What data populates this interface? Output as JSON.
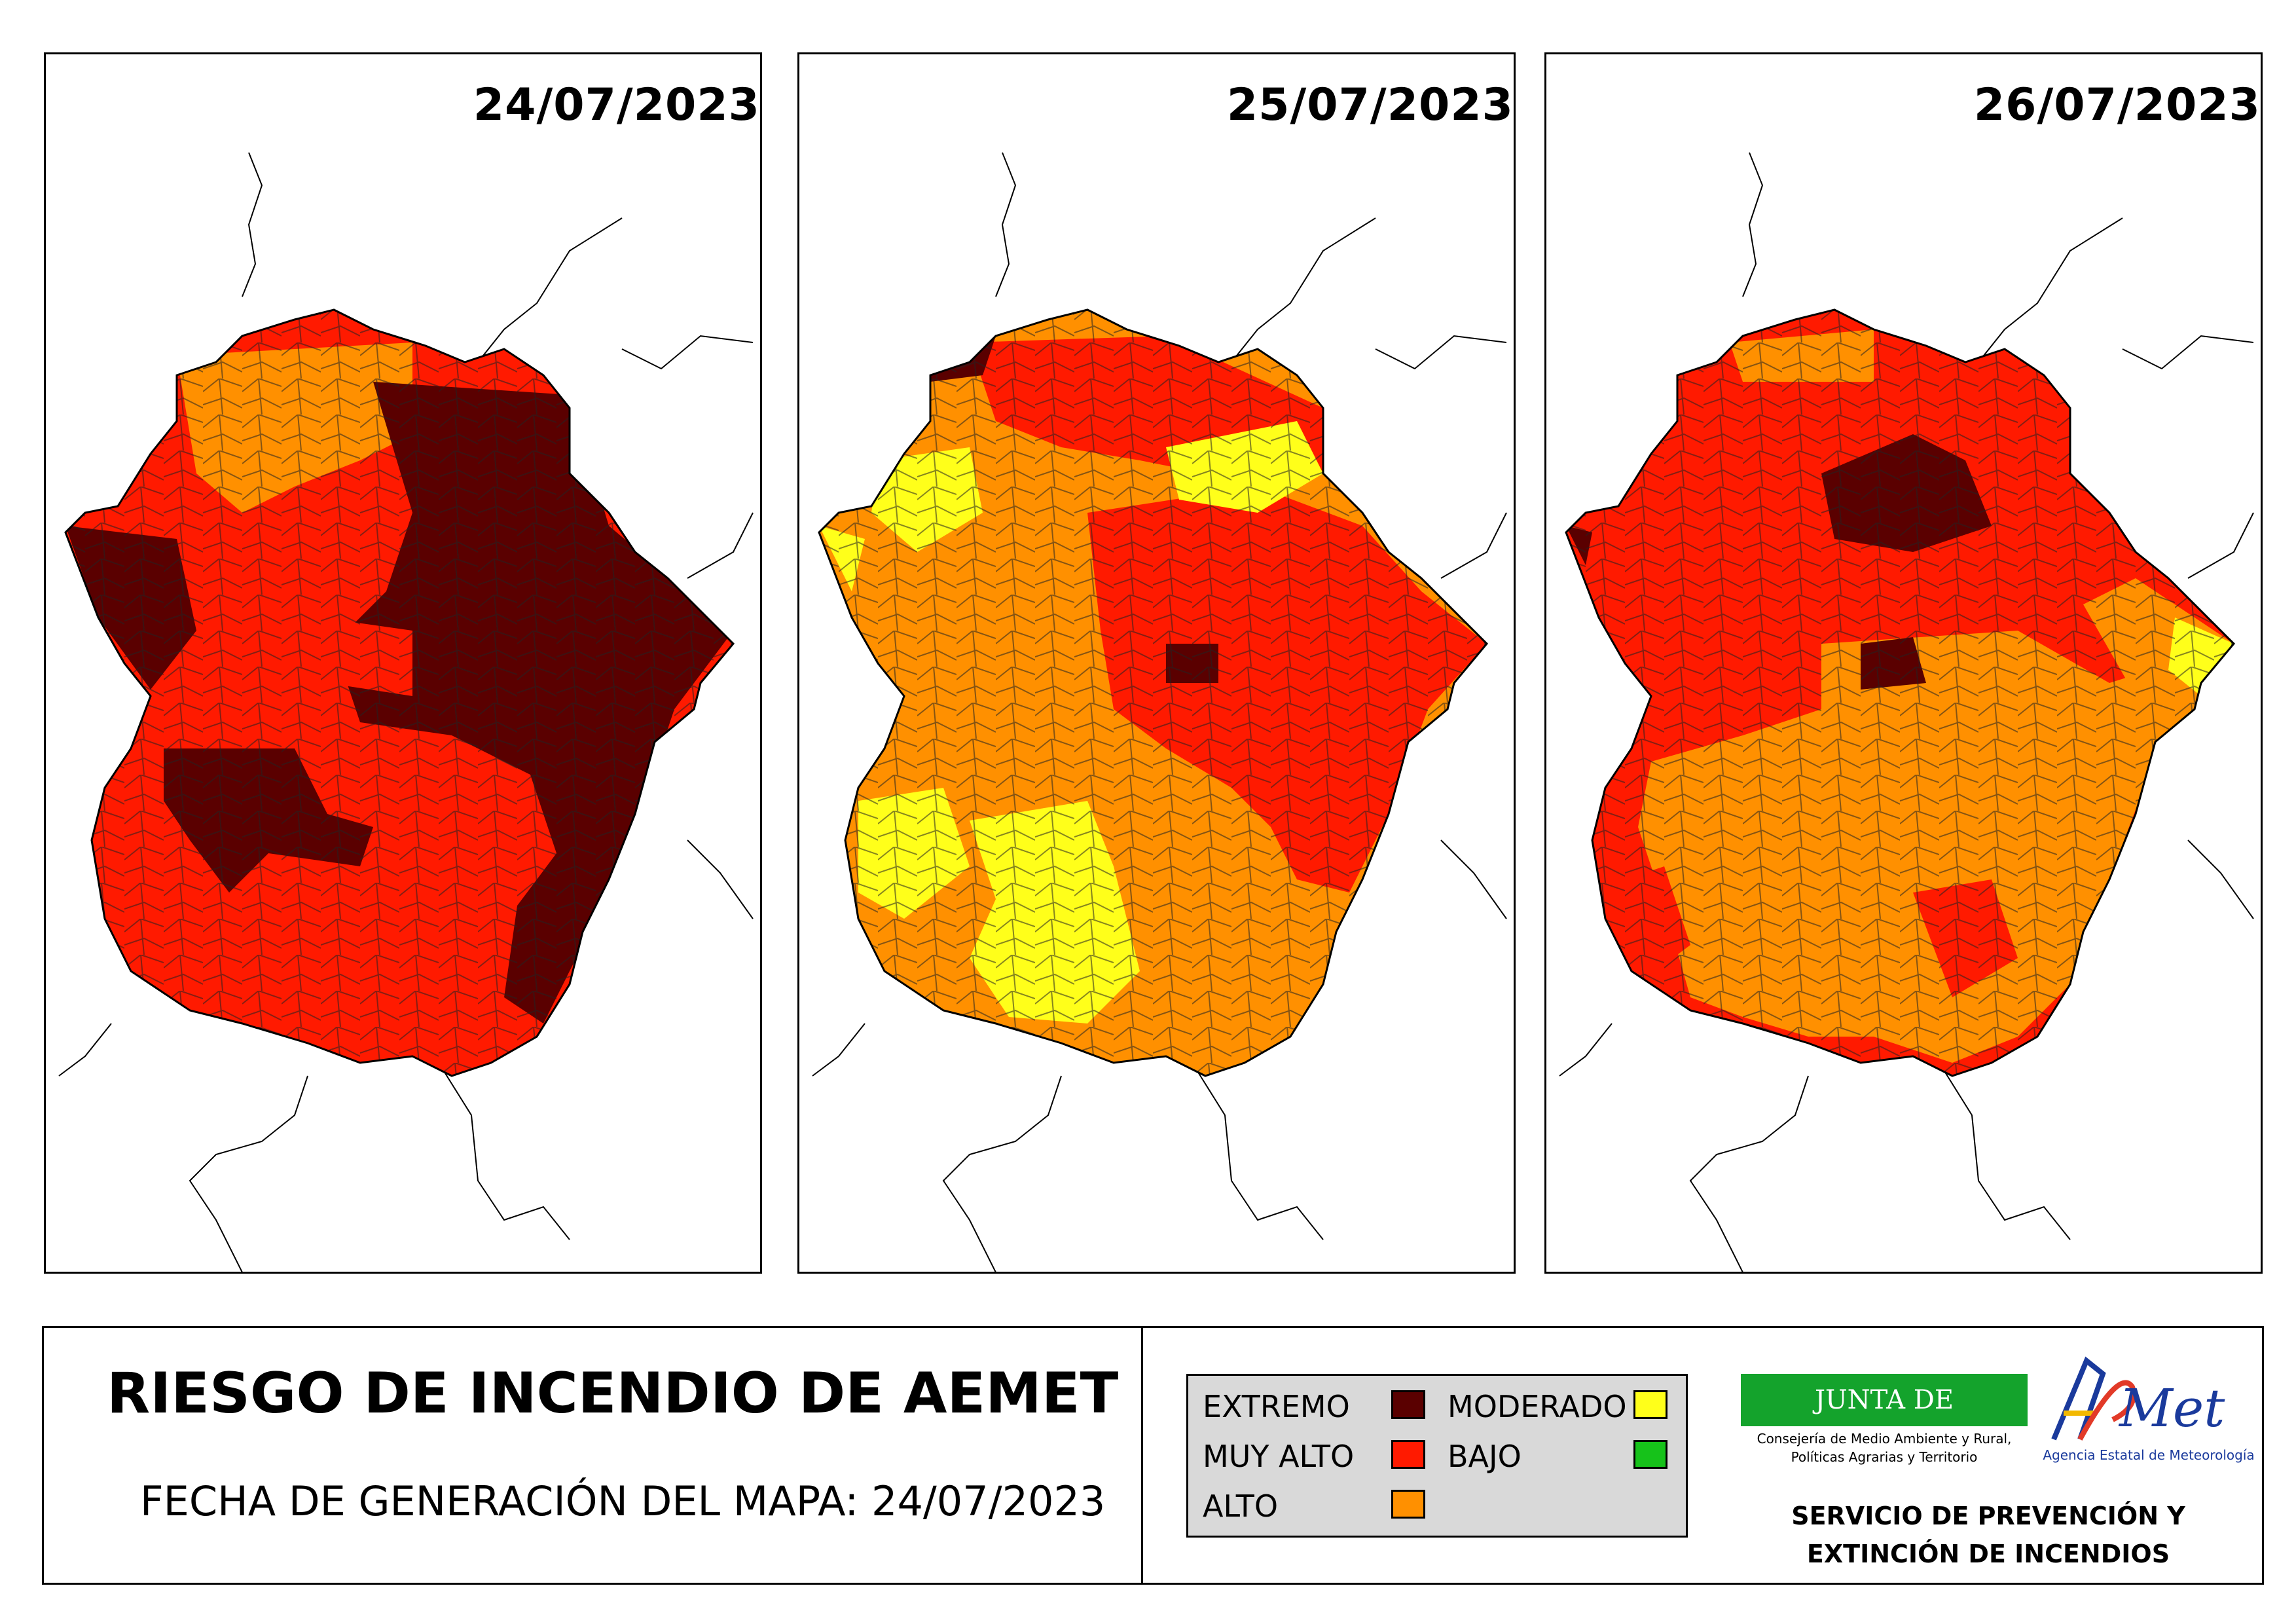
{
  "title": "RIESGO DE INCENDIO DE AEMET",
  "generation": "FECHA DE GENERACIÓN DEL MAPA: 24/07/2023",
  "maps": [
    {
      "date": "24/07/2023"
    },
    {
      "date": "25/07/2023"
    },
    {
      "date": "26/07/2023"
    }
  ],
  "legend": {
    "items": [
      {
        "label": "EXTREMO",
        "color": "#5a0000"
      },
      {
        "label": "MUY ALTO",
        "color": "#ff1a00"
      },
      {
        "label": "ALTO",
        "color": "#ff9000"
      },
      {
        "label": "MODERADO",
        "color": "#ffff1a"
      },
      {
        "label": "BAJO",
        "color": "#16c21a"
      }
    ]
  },
  "logos": {
    "junta": "JUNTA DE EXTREMADURA",
    "junta_sub1": "Consejería de Medio Ambiente y Rural,",
    "junta_sub2": "Políticas Agrarias y Territorio",
    "aemet": "AEMet",
    "aemet_sub": "Agencia Estatal de Meteorología"
  },
  "service": {
    "line1": "SERVICIO DE PREVENCIÓN Y",
    "line2": "EXTINCIÓN DE INCENDIOS"
  }
}
